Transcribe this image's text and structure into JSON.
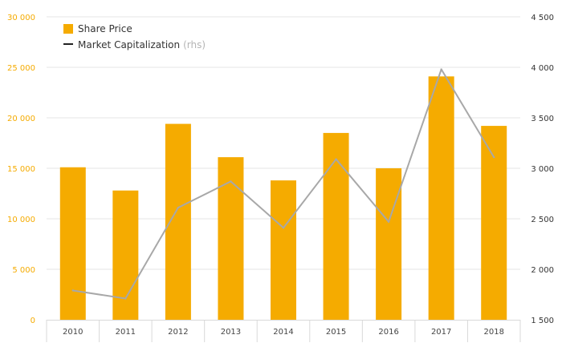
{
  "chart_data": {
    "type": "bar",
    "categories": [
      "2010",
      "2011",
      "2012",
      "2013",
      "2014",
      "2015",
      "2016",
      "2017",
      "2018"
    ],
    "series": [
      {
        "name": "Share Price",
        "type": "bar",
        "axis": "left",
        "color": "#f5ab00",
        "values": [
          15100,
          12800,
          19400,
          16100,
          13800,
          18500,
          15000,
          24100,
          19200
        ]
      },
      {
        "name": "Market Capitalization",
        "axis_note": "(rhs)",
        "type": "line",
        "axis": "right",
        "color": "#a8a8a8",
        "values": [
          1790,
          1710,
          2610,
          2870,
          2410,
          3090,
          2470,
          3980,
          3110
        ]
      }
    ],
    "ylim_left": [
      0,
      30000
    ],
    "ylim_right": [
      1500,
      4500
    ],
    "yticks_left": [
      "0",
      "5 000",
      "10 000",
      "15 000",
      "20 000",
      "25 000",
      "30 000"
    ],
    "yticks_right": [
      "1 500",
      "2 000",
      "2 500",
      "3 000",
      "3 500",
      "4 000",
      "4 500"
    ],
    "left_tick_color": "#f5ab00",
    "right_tick_color": "#333333",
    "grid": true,
    "legend_position": "top-left"
  }
}
